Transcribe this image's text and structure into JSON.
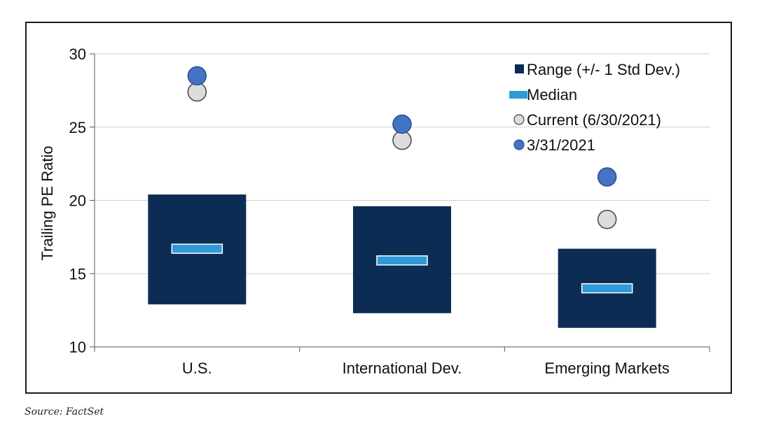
{
  "source_note": "Source: FactSet",
  "chart_data": {
    "type": "box",
    "title": "",
    "xlabel": "",
    "ylabel": "Trailing PE Ratio",
    "ylim": [
      10,
      30
    ],
    "yticks": [
      "10",
      "15",
      "20",
      "25",
      "30"
    ],
    "grid": true,
    "legend_placement": "top-right",
    "categories": [
      "U.S.",
      "International Dev.",
      "Emerging Markets"
    ],
    "series": [
      {
        "name": "Range (+/- 1 Std Dev.)",
        "marker": "rect",
        "color": "#0c2c54",
        "low": [
          12.9,
          12.3,
          11.3
        ],
        "high": [
          20.4,
          19.6,
          16.7
        ]
      },
      {
        "name": "Median",
        "marker": "bar",
        "color": "#2e9ad8",
        "values": [
          16.7,
          15.9,
          14.0
        ]
      },
      {
        "name": "Current (6/30/2021)",
        "marker": "circle",
        "color": "#dcdcdc",
        "values": [
          27.4,
          24.1,
          18.7
        ]
      },
      {
        "name": "3/31/2021",
        "marker": "circle",
        "color": "#4472c4",
        "values": [
          28.5,
          25.2,
          21.6
        ]
      }
    ]
  }
}
